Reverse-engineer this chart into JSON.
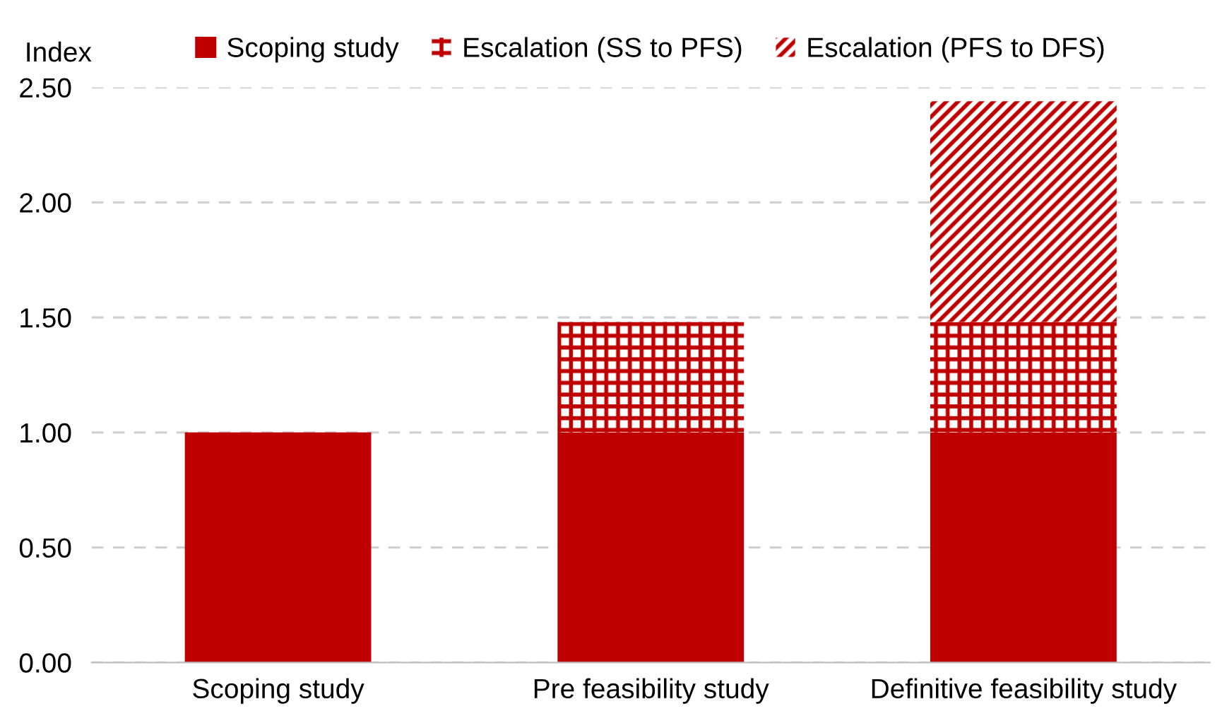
{
  "chart_data": {
    "type": "bar",
    "stacked": true,
    "ylabel": "Index",
    "categories": [
      "Scoping study",
      "Pre feasibility study",
      "Definitive feasibility study"
    ],
    "series": [
      {
        "name": "Scoping study",
        "color": "#c00000",
        "values": [
          1.0,
          1.0,
          1.0
        ]
      },
      {
        "name": "Escalation (SS to PFS)",
        "color": "#c00000",
        "values": [
          null,
          0.48,
          0.48
        ]
      },
      {
        "name": "Escalation (PFS to DFS)",
        "color": "#c00000",
        "values": [
          null,
          null,
          0.96
        ]
      }
    ],
    "ylim": [
      0,
      2.5
    ],
    "yticks": [
      {
        "value": 0,
        "label": "0.00"
      },
      {
        "value": 0.5,
        "label": "0.50"
      },
      {
        "value": 1,
        "label": "1.00"
      },
      {
        "value": 1.5,
        "label": "1.50"
      },
      {
        "value": 2,
        "label": "2.00"
      },
      {
        "value": 2.5,
        "label": "2.50"
      }
    ],
    "grid": "y",
    "legend": "top"
  }
}
